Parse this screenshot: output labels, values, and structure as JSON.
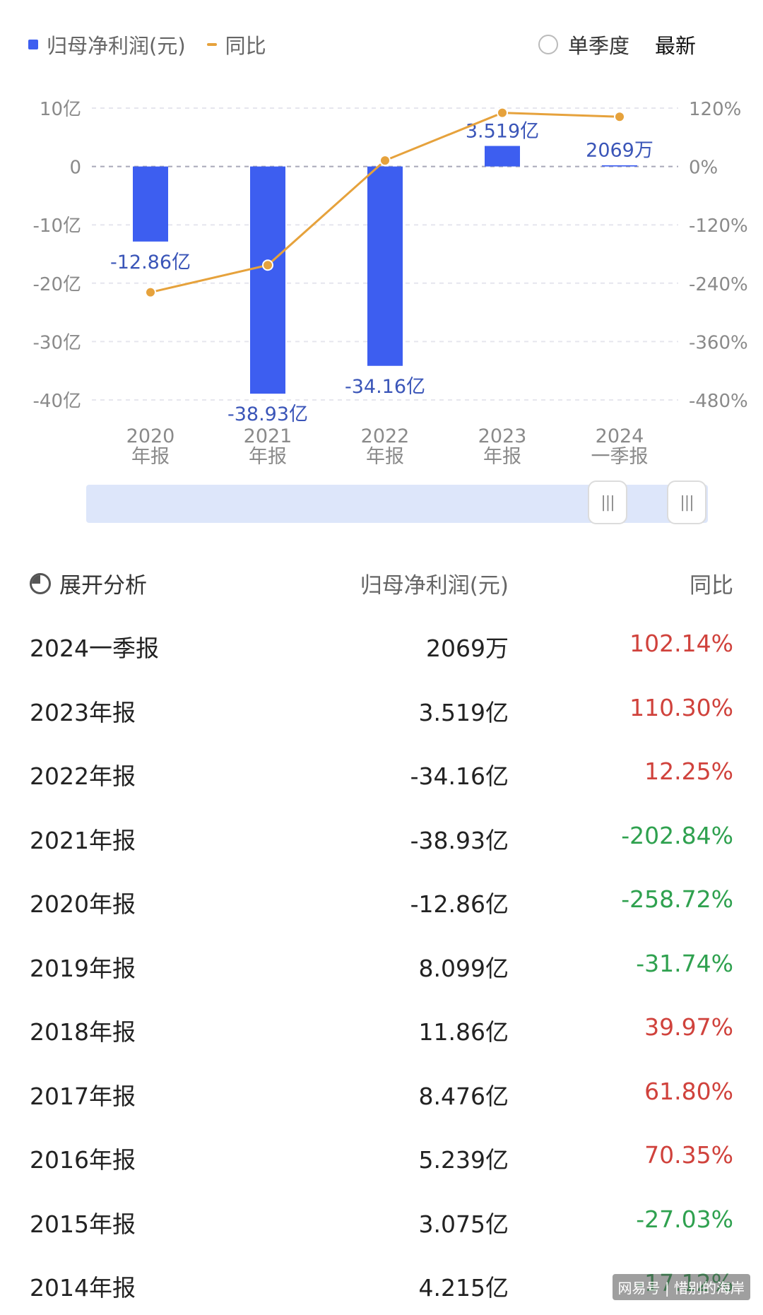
{
  "legend": {
    "series1_label": "归母净利润(元)",
    "series2_label": "同比"
  },
  "toggle": {
    "single_quarter_label": "单季度",
    "latest_label": "最新"
  },
  "colors": {
    "bar": "#3d5ef0",
    "line": "#e6a23c",
    "positive": "#d0423c",
    "negative": "#2fa14f"
  },
  "chart_data": {
    "type": "bar",
    "categories": [
      [
        "2020",
        "年报"
      ],
      [
        "2021",
        "年报"
      ],
      [
        "2022",
        "年报"
      ],
      [
        "2023",
        "年报"
      ],
      [
        "2024",
        "一季报"
      ]
    ],
    "series": [
      {
        "name": "归母净利润(元)",
        "type": "bar",
        "values": [
          -12.86,
          -38.93,
          -34.16,
          3.519,
          0.2069
        ],
        "labels": [
          "-12.86亿",
          "-38.93亿",
          "-34.16亿",
          "3.519亿",
          "2069万"
        ],
        "axis": "left"
      },
      {
        "name": "同比",
        "type": "line",
        "values": [
          -258.72,
          -202.84,
          12.25,
          110.3,
          102.14
        ],
        "axis": "right"
      }
    ],
    "left_axis": {
      "min": -40,
      "max": 10,
      "ticks": [
        10,
        0,
        -10,
        -20,
        -30,
        -40
      ],
      "tick_labels": [
        "10亿",
        "0",
        "-10亿",
        "-20亿",
        "-30亿",
        "-40亿"
      ]
    },
    "right_axis": {
      "min": -480,
      "max": 120,
      "ticks": [
        120,
        0,
        -120,
        -240,
        -360,
        -480
      ],
      "tick_labels": [
        "120%",
        "0%",
        "-120%",
        "-240%",
        "-360%",
        "-480%"
      ]
    },
    "grid": true
  },
  "table": {
    "expand_label": "展开分析",
    "col_value": "归母净利润(元)",
    "col_yoy": "同比",
    "rows": [
      {
        "period": "2024一季报",
        "value": "2069万",
        "yoy": "102.14%",
        "sign": "pos"
      },
      {
        "period": "2023年报",
        "value": "3.519亿",
        "yoy": "110.30%",
        "sign": "pos"
      },
      {
        "period": "2022年报",
        "value": "-34.16亿",
        "yoy": "12.25%",
        "sign": "pos"
      },
      {
        "period": "2021年报",
        "value": "-38.93亿",
        "yoy": "-202.84%",
        "sign": "neg"
      },
      {
        "period": "2020年报",
        "value": "-12.86亿",
        "yoy": "-258.72%",
        "sign": "neg"
      },
      {
        "period": "2019年报",
        "value": "8.099亿",
        "yoy": "-31.74%",
        "sign": "neg"
      },
      {
        "period": "2018年报",
        "value": "11.86亿",
        "yoy": "39.97%",
        "sign": "pos"
      },
      {
        "period": "2017年报",
        "value": "8.476亿",
        "yoy": "61.80%",
        "sign": "pos"
      },
      {
        "period": "2016年报",
        "value": "5.239亿",
        "yoy": "70.35%",
        "sign": "pos"
      },
      {
        "period": "2015年报",
        "value": "3.075亿",
        "yoy": "-27.03%",
        "sign": "neg"
      },
      {
        "period": "2014年报",
        "value": "4.215亿",
        "yoy": "-17.12%",
        "sign": "neg"
      }
    ]
  },
  "slider": {
    "handle_icon": "grip-lines-icon",
    "handle_glyph": "|||"
  },
  "watermark": "网易号 | 惜别的海岸"
}
